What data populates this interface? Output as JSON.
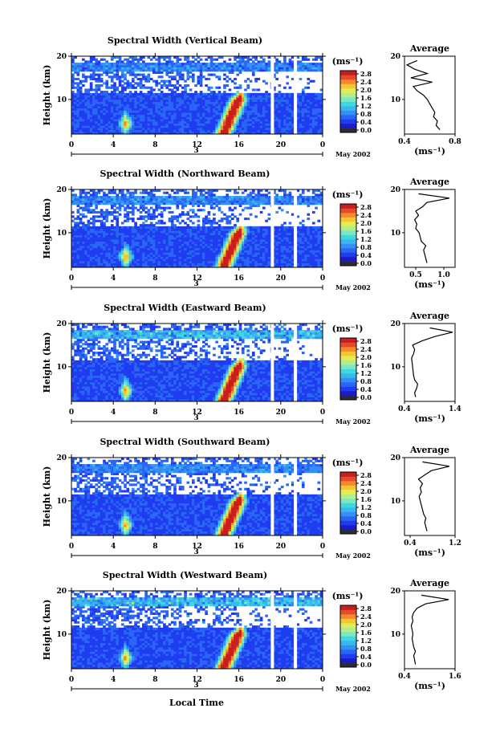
{
  "colors": {
    "colormap": [
      "#2b2b3a",
      "#1d1bc8",
      "#1f3cf0",
      "#2a66f6",
      "#3590f5",
      "#39b8ee",
      "#40d8e0",
      "#7ae8c4",
      "#b0ee8e",
      "#e4ec53",
      "#f6c532",
      "#f48a2c",
      "#e44b2a",
      "#c81e1e"
    ],
    "sparse": "#ffffff"
  },
  "footer": {
    "day": "3",
    "month_year": "May 2002",
    "xlabel": "Local Time"
  },
  "chart_data": [
    {
      "type": "heatmap",
      "title": "Spectral Width (Vertical Beam)",
      "ylabel": "Height (km)",
      "xticks": [
        "0",
        "4",
        "8",
        "12",
        "16",
        "20",
        "0"
      ],
      "yticks": [
        "10",
        "20"
      ],
      "xlim": [
        0,
        24
      ],
      "ylim": [
        2,
        20
      ],
      "colorbar": {
        "unit": "(ms⁻¹)",
        "ticks": [
          "0.0",
          "0.4",
          "0.8",
          "1.2",
          "1.6",
          "2.0",
          "2.4",
          "2.8"
        ],
        "range": [
          0,
          3.0
        ]
      },
      "data_gaps_hours": [
        19.2,
        21.4
      ],
      "average_profile": {
        "title": "Average",
        "xlabel": "(ms⁻¹)",
        "xticks": [
          "0.4",
          "0.8"
        ],
        "xlim": [
          0.4,
          0.8
        ],
        "yticks": [
          "10",
          "20"
        ],
        "height_km": [
          3,
          4,
          5,
          6,
          7,
          8,
          9,
          10,
          11,
          12,
          13,
          14,
          15,
          16,
          17,
          18,
          19
        ],
        "width": [
          0.68,
          0.65,
          0.66,
          0.63,
          0.64,
          0.62,
          0.6,
          0.58,
          0.55,
          0.5,
          0.47,
          0.62,
          0.45,
          0.58,
          0.48,
          0.42,
          0.5
        ]
      }
    },
    {
      "type": "heatmap",
      "title": "Spectral Width (Northward Beam)",
      "ylabel": "Height (km)",
      "xticks": [
        "0",
        "4",
        "8",
        "12",
        "16",
        "20",
        "0"
      ],
      "yticks": [
        "10",
        "20"
      ],
      "xlim": [
        0,
        24
      ],
      "ylim": [
        2,
        20
      ],
      "colorbar": {
        "unit": "(ms⁻¹)",
        "ticks": [
          "0.0",
          "0.4",
          "0.8",
          "1.2",
          "1.6",
          "2.0",
          "2.4",
          "2.8"
        ],
        "range": [
          0,
          3.0
        ]
      },
      "data_gaps_hours": [
        19.2,
        21.4
      ],
      "average_profile": {
        "title": "Average",
        "xlabel": "(ms⁻¹)",
        "xticks": [
          "0.5",
          "1.0"
        ],
        "xlim": [
          0.3,
          1.2
        ],
        "yticks": [
          "10",
          "20"
        ],
        "height_km": [
          3,
          4,
          5,
          6,
          7,
          8,
          9,
          10,
          11,
          12,
          13,
          14,
          15,
          16,
          17,
          18,
          19
        ],
        "width": [
          0.7,
          0.68,
          0.66,
          0.64,
          0.68,
          0.6,
          0.58,
          0.56,
          0.5,
          0.52,
          0.48,
          0.55,
          0.5,
          0.62,
          0.7,
          1.1,
          0.55
        ]
      }
    },
    {
      "type": "heatmap",
      "title": "Spectral Width (Eastward Beam)",
      "ylabel": "Height (km)",
      "xticks": [
        "0",
        "4",
        "8",
        "12",
        "16",
        "20",
        "0"
      ],
      "yticks": [
        "10",
        "20"
      ],
      "xlim": [
        0,
        24
      ],
      "ylim": [
        2,
        20
      ],
      "colorbar": {
        "unit": "(ms⁻¹)",
        "ticks": [
          "0.0",
          "0.4",
          "0.8",
          "1.2",
          "1.6",
          "2.0",
          "2.4",
          "2.8"
        ],
        "range": [
          0,
          3.0
        ]
      },
      "data_gaps_hours": [
        19.2,
        21.4
      ],
      "average_profile": {
        "title": "Average",
        "xlabel": "(ms⁻¹)",
        "xticks": [
          "0.4",
          "1.4"
        ],
        "xlim": [
          0.4,
          1.4
        ],
        "yticks": [
          "10",
          "20"
        ],
        "height_km": [
          3,
          4,
          5,
          6,
          7,
          8,
          9,
          10,
          11,
          12,
          13,
          14,
          15,
          16,
          17,
          18,
          19
        ],
        "width": [
          0.62,
          0.6,
          0.64,
          0.66,
          0.6,
          0.58,
          0.57,
          0.56,
          0.55,
          0.54,
          0.58,
          0.6,
          0.56,
          0.75,
          1.0,
          1.35,
          0.9
        ]
      }
    },
    {
      "type": "heatmap",
      "title": "Spectral Width (Southward Beam)",
      "ylabel": "Height (km)",
      "xticks": [
        "0",
        "4",
        "8",
        "12",
        "16",
        "20",
        "0"
      ],
      "yticks": [
        "10",
        "20"
      ],
      "xlim": [
        0,
        24
      ],
      "ylim": [
        2,
        20
      ],
      "colorbar": {
        "unit": "(ms⁻¹)",
        "ticks": [
          "0.0",
          "0.4",
          "0.8",
          "1.2",
          "1.6",
          "2.0",
          "2.4",
          "2.8"
        ],
        "range": [
          0,
          3.0
        ]
      },
      "data_gaps_hours": [
        19.2,
        21.4
      ],
      "average_profile": {
        "title": "Average",
        "xlabel": "(ms⁻¹)",
        "xticks": [
          "0.4",
          "1.2"
        ],
        "xlim": [
          0.3,
          1.2
        ],
        "yticks": [
          "10",
          "20"
        ],
        "height_km": [
          3,
          4,
          5,
          6,
          7,
          8,
          9,
          10,
          11,
          12,
          13,
          14,
          15,
          16,
          17,
          18,
          19
        ],
        "width": [
          0.7,
          0.68,
          0.66,
          0.68,
          0.64,
          0.62,
          0.6,
          0.58,
          0.56,
          0.6,
          0.58,
          0.62,
          0.55,
          0.66,
          0.78,
          1.1,
          0.62
        ]
      }
    },
    {
      "type": "heatmap",
      "title": "Spectral Width (Westward Beam)",
      "ylabel": "Height (km)",
      "xticks": [
        "0",
        "4",
        "8",
        "12",
        "16",
        "20",
        "0"
      ],
      "yticks": [
        "10",
        "20"
      ],
      "xlim": [
        0,
        24
      ],
      "ylim": [
        2,
        20
      ],
      "colorbar": {
        "unit": "(ms⁻¹)",
        "ticks": [
          "0.0",
          "0.4",
          "0.8",
          "1.2",
          "1.6",
          "2.0",
          "2.4",
          "2.8"
        ],
        "range": [
          0,
          3.0
        ]
      },
      "data_gaps_hours": [
        19.2,
        21.4
      ],
      "average_profile": {
        "title": "Average",
        "xlabel": "(ms⁻¹)",
        "xticks": [
          "0.4",
          "1.6"
        ],
        "xlim": [
          0.4,
          1.6
        ],
        "yticks": [
          "10",
          "20"
        ],
        "height_km": [
          3,
          4,
          5,
          6,
          7,
          8,
          9,
          10,
          11,
          12,
          13,
          14,
          15,
          16,
          17,
          18,
          19
        ],
        "width": [
          0.66,
          0.64,
          0.62,
          0.66,
          0.62,
          0.6,
          0.58,
          0.6,
          0.58,
          0.56,
          0.6,
          0.58,
          0.62,
          0.7,
          0.9,
          1.45,
          0.8
        ]
      }
    }
  ]
}
